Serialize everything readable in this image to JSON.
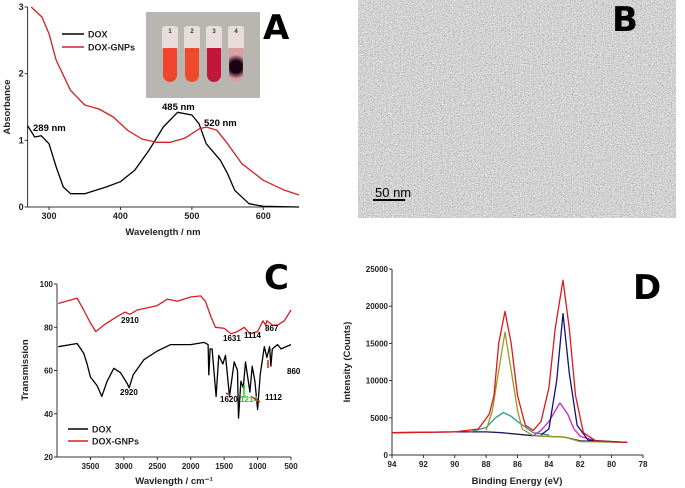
{
  "panels": {
    "a": "A",
    "b": "B",
    "c": "C",
    "d": "D"
  },
  "inset": {
    "tube_labels": [
      "1",
      "2",
      "3",
      "4"
    ],
    "tube_colors": [
      "#f0442c",
      "#f04a2c",
      "#c0173a",
      "#4a0a20"
    ]
  },
  "tem": {
    "scale_bar_label": "50 nm"
  },
  "colors": {
    "dox": "#000000",
    "dox_gnps": "#d42020",
    "green_label": "#22cc22"
  },
  "chart_data": [
    {
      "id": "A",
      "type": "line",
      "xlabel": "Wavelength / nm",
      "ylabel": "Absorbance",
      "xlim": [
        270,
        650
      ],
      "ylim": [
        0,
        3
      ],
      "xticks": [
        300,
        400,
        500,
        600
      ],
      "yticks": [
        0,
        1,
        2,
        3
      ],
      "legend": "top-left",
      "annotations": [
        "289 nm",
        "485 nm",
        "520 nm"
      ],
      "series": [
        {
          "name": "DOX",
          "color": "#000000",
          "points": [
            [
              270,
              1.22
            ],
            [
              280,
              1.05
            ],
            [
              289,
              1.07
            ],
            [
              300,
              0.95
            ],
            [
              310,
              0.6
            ],
            [
              320,
              0.3
            ],
            [
              330,
              0.2
            ],
            [
              350,
              0.2
            ],
            [
              380,
              0.3
            ],
            [
              400,
              0.38
            ],
            [
              420,
              0.55
            ],
            [
              440,
              0.85
            ],
            [
              460,
              1.2
            ],
            [
              480,
              1.42
            ],
            [
              500,
              1.38
            ],
            [
              510,
              1.25
            ],
            [
              520,
              0.95
            ],
            [
              540,
              0.7
            ],
            [
              550,
              0.5
            ],
            [
              560,
              0.25
            ],
            [
              580,
              0.05
            ],
            [
              600,
              0.01
            ],
            [
              650,
              0
            ]
          ]
        },
        {
          "name": "DOX-GNPs",
          "color": "#d42020",
          "points": [
            [
              275,
              3.0
            ],
            [
              290,
              2.85
            ],
            [
              300,
              2.6
            ],
            [
              310,
              2.2
            ],
            [
              330,
              1.75
            ],
            [
              350,
              1.53
            ],
            [
              370,
              1.47
            ],
            [
              390,
              1.35
            ],
            [
              410,
              1.15
            ],
            [
              430,
              1.02
            ],
            [
              450,
              0.97
            ],
            [
              470,
              0.97
            ],
            [
              490,
              1.03
            ],
            [
              510,
              1.17
            ],
            [
              520,
              1.2
            ],
            [
              535,
              1.15
            ],
            [
              550,
              0.95
            ],
            [
              570,
              0.65
            ],
            [
              600,
              0.4
            ],
            [
              630,
              0.25
            ],
            [
              650,
              0.18
            ]
          ]
        }
      ]
    },
    {
      "id": "C",
      "type": "line",
      "xlabel": "Wavlength / cm⁻¹",
      "ylabel": "Transmission",
      "xlim": [
        4000,
        500
      ],
      "ylim": [
        20,
        100
      ],
      "xticks": [
        3500,
        3000,
        2500,
        2000,
        1500,
        1000,
        500
      ],
      "yticks": [
        20,
        40,
        60,
        80,
        100
      ],
      "legend": "bottom-left",
      "annotations": [
        "2910",
        "1631",
        "1114",
        "867",
        "2920",
        "1620",
        "1214",
        "1112",
        "860"
      ],
      "series": [
        {
          "name": "DOX",
          "color": "#000000",
          "points": [
            [
              3980,
              71
            ],
            [
              3700,
              72.5
            ],
            [
              3600,
              68
            ],
            [
              3550,
              63
            ],
            [
              3500,
              57
            ],
            [
              3400,
              53
            ],
            [
              3330,
              48
            ],
            [
              3250,
              55
            ],
            [
              3150,
              61
            ],
            [
              3050,
              59
            ],
            [
              2950,
              54
            ],
            [
              2920,
              52
            ],
            [
              2860,
              58
            ],
            [
              2700,
              65
            ],
            [
              2500,
              69
            ],
            [
              2300,
              72
            ],
            [
              2000,
              72
            ],
            [
              1800,
              73
            ],
            [
              1740,
              72
            ],
            [
              1730,
              58
            ],
            [
              1710,
              70
            ],
            [
              1680,
              70
            ],
            [
              1620,
              48
            ],
            [
              1580,
              67
            ],
            [
              1520,
              63
            ],
            [
              1480,
              67
            ],
            [
              1420,
              48
            ],
            [
              1350,
              64
            ],
            [
              1300,
              60
            ],
            [
              1285,
              38
            ],
            [
              1250,
              55
            ],
            [
              1214,
              52
            ],
            [
              1180,
              64
            ],
            [
              1114,
              50
            ],
            [
              1080,
              62
            ],
            [
              1040,
              55
            ],
            [
              1000,
              42
            ],
            [
              960,
              58
            ],
            [
              900,
              71
            ],
            [
              860,
              66
            ],
            [
              820,
              71
            ],
            [
              800,
              62
            ],
            [
              780,
              70
            ],
            [
              700,
              72
            ],
            [
              650,
              70
            ],
            [
              500,
              72
            ]
          ]
        },
        {
          "name": "DOX-GNPs",
          "color": "#d42020",
          "points": [
            [
              3980,
              91
            ],
            [
              3700,
              93.5
            ],
            [
              3600,
              88
            ],
            [
              3500,
              82
            ],
            [
              3420,
              78
            ],
            [
              3300,
              81
            ],
            [
              3100,
              85
            ],
            [
              2980,
              87
            ],
            [
              2910,
              86
            ],
            [
              2800,
              88
            ],
            [
              2500,
              90
            ],
            [
              2350,
              93
            ],
            [
              2200,
              92
            ],
            [
              2000,
              94
            ],
            [
              1850,
              94.5
            ],
            [
              1780,
              92
            ],
            [
              1700,
              85
            ],
            [
              1631,
              80
            ],
            [
              1500,
              79.5
            ],
            [
              1400,
              77
            ],
            [
              1300,
              78
            ],
            [
              1200,
              80
            ],
            [
              1114,
              77
            ],
            [
              1000,
              78
            ],
            [
              920,
              83
            ],
            [
              880,
              81
            ],
            [
              860,
              83
            ],
            [
              780,
              81
            ],
            [
              700,
              81
            ],
            [
              600,
              83
            ],
            [
              500,
              88
            ]
          ]
        }
      ]
    },
    {
      "id": "D",
      "type": "line",
      "xlabel": "Binding Energy (eV)",
      "ylabel": "Intensity (Counts)",
      "xlim": [
        94,
        78
      ],
      "ylim": [
        0,
        25000
      ],
      "xticks": [
        94,
        92,
        90,
        88,
        86,
        84,
        82,
        80,
        78
      ],
      "yticks": [
        0,
        5000,
        10000,
        15000,
        20000,
        25000
      ],
      "series": [
        {
          "color": "#1a1a5a",
          "points": [
            [
              94,
              3000
            ],
            [
              90,
              3100
            ],
            [
              88,
              3100
            ],
            [
              87,
              3000
            ],
            [
              85,
              2600
            ],
            [
              83,
              2400
            ],
            [
              82,
              1900
            ],
            [
              80,
              1750
            ],
            [
              79,
              1700
            ]
          ]
        },
        {
          "color": "#2a9a8a",
          "points": [
            [
              89,
              3100
            ],
            [
              88,
              3700
            ],
            [
              87.4,
              5000
            ],
            [
              86.9,
              5700
            ],
            [
              86.4,
              5200
            ],
            [
              86,
              4500
            ],
            [
              85,
              3000
            ],
            [
              84,
              2700
            ]
          ]
        },
        {
          "color": "#9a9a20",
          "points": [
            [
              88,
              3300
            ],
            [
              87.6,
              6000
            ],
            [
              87.3,
              10000
            ],
            [
              86.8,
              16500
            ],
            [
              86.3,
              10000
            ],
            [
              86,
              6000
            ],
            [
              85.7,
              3500
            ],
            [
              85,
              2600
            ],
            [
              83,
              2400
            ],
            [
              82,
              1800
            ],
            [
              79,
              1700
            ]
          ]
        },
        {
          "color": "#cc22cc",
          "points": [
            [
              85,
              2600
            ],
            [
              84.5,
              3300
            ],
            [
              84,
              4500
            ],
            [
              83.3,
              7000
            ],
            [
              82.8,
              5500
            ],
            [
              82.4,
              3500
            ],
            [
              82,
              2500
            ],
            [
              81,
              1900
            ]
          ]
        },
        {
          "color": "#10107a",
          "points": [
            [
              84.5,
              2700
            ],
            [
              84,
              3500
            ],
            [
              83.5,
              10000
            ],
            [
              83.1,
              19000
            ],
            [
              82.7,
              11000
            ],
            [
              82.2,
              4000
            ],
            [
              81.5,
              2000
            ],
            [
              79,
              1700
            ]
          ]
        },
        {
          "color": "#e01818",
          "points": [
            [
              94,
              3000
            ],
            [
              90,
              3100
            ],
            [
              88.5,
              3500
            ],
            [
              87.8,
              5500
            ],
            [
              87.5,
              8000
            ],
            [
              87.2,
              15000
            ],
            [
              86.8,
              19300
            ],
            [
              86.4,
              15000
            ],
            [
              86,
              8000
            ],
            [
              85.5,
              4000
            ],
            [
              85,
              3300
            ],
            [
              84.5,
              4500
            ],
            [
              84,
              9000
            ],
            [
              83.6,
              17000
            ],
            [
              83.1,
              23500
            ],
            [
              82.7,
              17000
            ],
            [
              82.3,
              8000
            ],
            [
              81.8,
              3000
            ],
            [
              81,
              1900
            ],
            [
              79,
              1700
            ]
          ]
        }
      ]
    }
  ]
}
